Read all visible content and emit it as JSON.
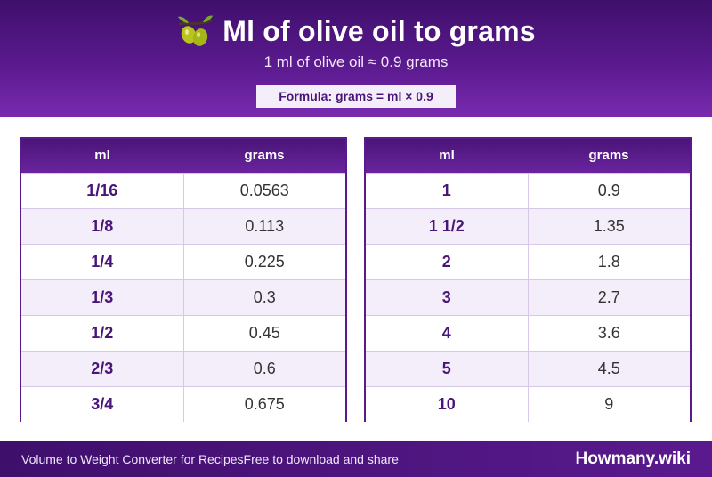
{
  "header": {
    "title": "Ml of olive oil to grams",
    "icon": "olive-icon",
    "subtitle": "1 ml of olive oil ≈ 0.9 grams",
    "formula": "Formula: grams = ml × 0.9"
  },
  "tables": [
    {
      "col_ml": "ml",
      "col_grams": "grams",
      "rows": [
        {
          "ml": "1/16",
          "grams": "0.0563"
        },
        {
          "ml": "1/8",
          "grams": "0.113"
        },
        {
          "ml": "1/4",
          "grams": "0.225"
        },
        {
          "ml": "1/3",
          "grams": "0.3"
        },
        {
          "ml": "1/2",
          "grams": "0.45"
        },
        {
          "ml": "2/3",
          "grams": "0.6"
        },
        {
          "ml": "3/4",
          "grams": "0.675"
        }
      ]
    },
    {
      "col_ml": "ml",
      "col_grams": "grams",
      "rows": [
        {
          "ml": "1",
          "grams": "0.9"
        },
        {
          "ml": "1 1/2",
          "grams": "1.35"
        },
        {
          "ml": "2",
          "grams": "1.8"
        },
        {
          "ml": "3",
          "grams": "2.7"
        },
        {
          "ml": "4",
          "grams": "3.6"
        },
        {
          "ml": "5",
          "grams": "4.5"
        },
        {
          "ml": "10",
          "grams": "9"
        }
      ]
    }
  ],
  "footer": {
    "left_text_1": "Volume to Weight Converter for Recipes",
    "left_text_2": "Free to download and share",
    "brand": "Howmany.wiki"
  },
  "colors": {
    "brand_purple": "#5a1a8e",
    "row_alt": "#f3eefa"
  }
}
